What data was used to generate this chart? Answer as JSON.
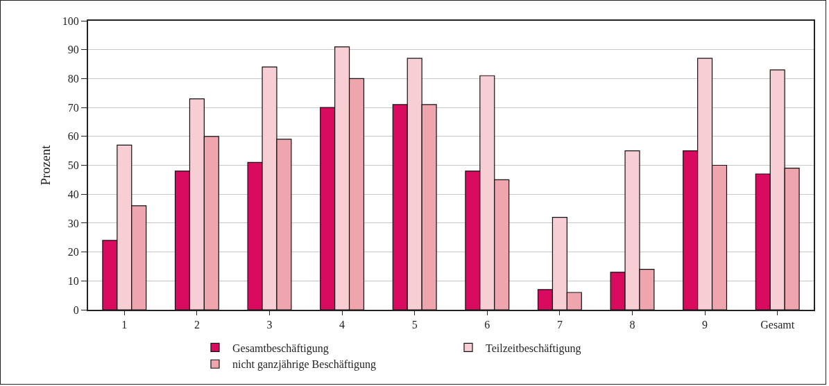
{
  "chart_data": {
    "type": "bar",
    "ylabel": "Prozent",
    "categories": [
      "1",
      "2",
      "3",
      "4",
      "5",
      "6",
      "7",
      "8",
      "9",
      "Gesamt"
    ],
    "series": [
      {
        "name": "Gesamtbeschäftigung",
        "color": "#d90b5e",
        "values": [
          24,
          48,
          51,
          70,
          71,
          48,
          7,
          13,
          55,
          47
        ]
      },
      {
        "name": "Teilzeitbeschäftigung",
        "color": "#f6ced3",
        "values": [
          57,
          73,
          84,
          91,
          87,
          81,
          32,
          55,
          87,
          83
        ]
      },
      {
        "name": "nicht ganzjährige Beschäftigung",
        "color": "#eea5ae",
        "values": [
          36,
          60,
          59,
          80,
          71,
          45,
          6,
          14,
          50,
          49
        ]
      }
    ],
    "ylim": [
      0,
      100
    ],
    "yticks": [
      0,
      10,
      20,
      30,
      40,
      50,
      60,
      70,
      80,
      90,
      100
    ],
    "grid": "y",
    "legend": "bottom"
  }
}
